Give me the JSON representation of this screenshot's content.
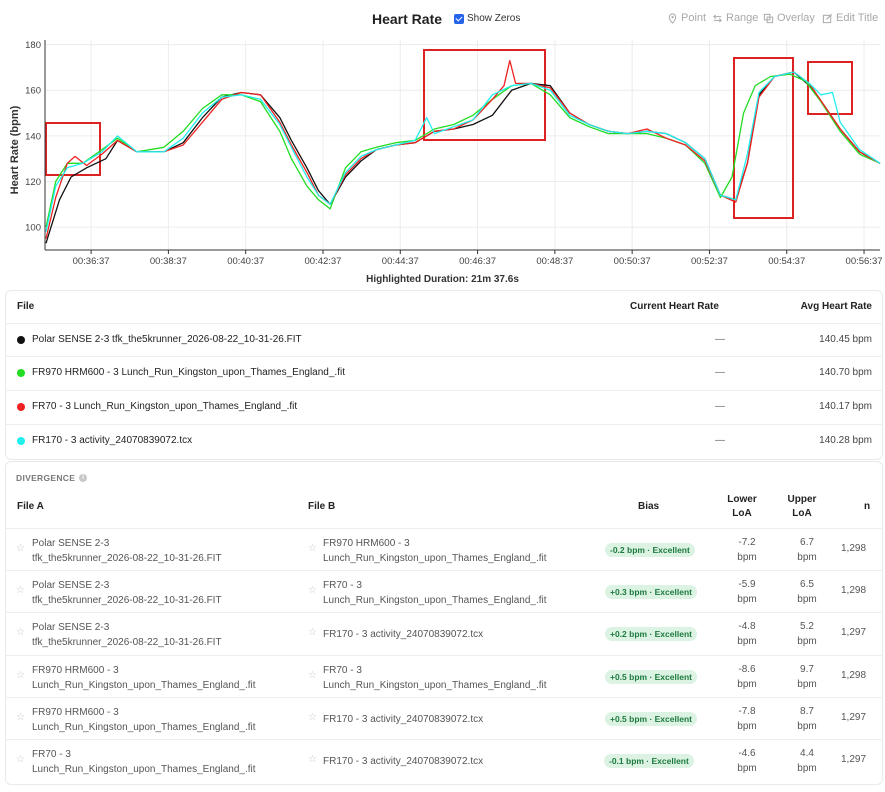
{
  "toolbar": {
    "title": "Heart Rate",
    "show_zeros_label": "Show Zeros",
    "point_label": "Point",
    "range_label": "Range",
    "overlay_label": "Overlay",
    "edit_title_label": "Edit Title"
  },
  "chart_data": {
    "type": "line",
    "title": "",
    "xlabel": "",
    "ylabel": "Heart Rate (bpm)",
    "ylim": [
      90,
      182
    ],
    "y_ticks": [
      "100",
      "120",
      "140",
      "160",
      "180"
    ],
    "x_ticks": [
      "00:36:37",
      "00:38:37",
      "00:40:37",
      "00:42:37",
      "00:44:37",
      "00:46:37",
      "00:48:37",
      "00:50:37",
      "00:52:37",
      "00:54:37",
      "00:56:37"
    ],
    "x_tick_minutes": [
      36.617,
      38.617,
      40.617,
      42.617,
      44.617,
      46.617,
      48.617,
      50.617,
      52.617,
      54.617,
      56.617
    ],
    "x_range_minutes": [
      35.45,
      57.03
    ],
    "grid": true,
    "series": [
      {
        "name": "Polar SENSE 2-3 tfk_the5krunner_2026-08-22_10-31-26.FIT",
        "color": "#111111",
        "x": [
          35.45,
          35.8,
          36.1,
          36.5,
          37.0,
          37.3,
          37.8,
          38.5,
          39.0,
          39.5,
          40.0,
          40.5,
          41.0,
          41.5,
          41.8,
          42.2,
          42.5,
          42.8,
          43.2,
          43.6,
          44.0,
          44.5,
          45.0,
          45.5,
          46.0,
          46.5,
          47.0,
          47.5,
          48.0,
          48.5,
          49.0,
          49.5,
          50.0,
          50.5,
          51.0,
          51.5,
          52.0,
          52.5,
          52.9,
          53.3,
          53.6,
          53.9,
          54.3,
          54.8,
          55.2,
          55.6,
          56.0,
          56.5,
          57.03
        ],
        "y": [
          93,
          112,
          122,
          126,
          130,
          138,
          133,
          133,
          137,
          148,
          157,
          159,
          158,
          148,
          138,
          126,
          116,
          110,
          122,
          129,
          134,
          136,
          137,
          142,
          143,
          145,
          149,
          160,
          163,
          162,
          150,
          145,
          142,
          141,
          142,
          141,
          137,
          130,
          114,
          112,
          128,
          158,
          166,
          168,
          162,
          153,
          143,
          133,
          128
        ]
      },
      {
        "name": "FR970 HRM600 - 3 Lunch_Run_Kingston_upon_Thames_England_.fit",
        "color": "#22dd22",
        "x": [
          35.45,
          35.7,
          36.0,
          36.4,
          36.9,
          37.3,
          37.8,
          38.5,
          39.0,
          39.5,
          40.0,
          40.5,
          41.0,
          41.5,
          41.8,
          42.2,
          42.5,
          42.8,
          43.2,
          43.6,
          44.0,
          44.5,
          45.0,
          45.5,
          46.0,
          46.5,
          47.0,
          47.5,
          48.0,
          48.5,
          49.0,
          49.5,
          50.0,
          50.5,
          51.0,
          51.5,
          52.0,
          52.5,
          52.9,
          53.2,
          53.5,
          53.8,
          54.2,
          54.7,
          55.1,
          55.5,
          56.0,
          56.5,
          57.03
        ],
        "y": [
          100,
          120,
          128,
          128,
          134,
          139,
          133,
          135,
          142,
          152,
          158,
          158,
          155,
          142,
          130,
          118,
          112,
          108,
          126,
          133,
          135,
          137,
          138,
          143,
          145,
          149,
          156,
          162,
          163,
          158,
          148,
          144,
          141,
          141,
          141,
          139,
          136,
          128,
          113,
          122,
          150,
          162,
          166,
          167,
          164,
          155,
          142,
          132,
          128
        ]
      },
      {
        "name": "FR70 - 3 Lunch_Run_Kingston_upon_Thames_England_.fit",
        "color": "#ee2222",
        "x": [
          35.45,
          35.7,
          36.0,
          36.2,
          36.5,
          36.9,
          37.3,
          37.8,
          38.5,
          39.0,
          39.5,
          40.0,
          40.5,
          41.0,
          41.5,
          41.8,
          42.2,
          42.5,
          42.8,
          43.2,
          43.6,
          44.0,
          44.5,
          45.0,
          45.5,
          46.0,
          46.5,
          47.0,
          47.3,
          47.45,
          47.6,
          48.0,
          48.5,
          49.0,
          49.5,
          50.0,
          50.5,
          51.0,
          51.5,
          52.0,
          52.5,
          52.9,
          53.3,
          53.6,
          53.9,
          54.3,
          54.8,
          55.2,
          55.6,
          56.0,
          56.5,
          57.03
        ],
        "y": [
          95,
          113,
          128,
          131,
          127,
          132,
          138,
          133,
          133,
          136,
          146,
          156,
          159,
          158,
          146,
          136,
          124,
          114,
          110,
          123,
          130,
          134,
          136,
          137,
          142,
          143,
          147,
          156,
          162,
          173,
          163,
          163,
          161,
          150,
          145,
          142,
          141,
          143,
          139,
          136,
          129,
          114,
          111,
          128,
          157,
          166,
          168,
          163,
          153,
          143,
          133,
          128
        ]
      },
      {
        "name": "FR170 - 3 activity_24070839072.tcx",
        "color": "#22eeee",
        "x": [
          35.45,
          35.7,
          36.0,
          36.4,
          36.9,
          37.3,
          37.8,
          38.5,
          39.0,
          39.5,
          40.0,
          40.5,
          41.0,
          41.5,
          41.8,
          42.2,
          42.5,
          42.8,
          43.2,
          43.6,
          44.0,
          44.5,
          45.0,
          45.3,
          45.5,
          46.0,
          46.5,
          47.0,
          47.5,
          48.0,
          48.5,
          49.0,
          49.5,
          50.0,
          50.5,
          51.0,
          51.5,
          52.0,
          52.5,
          52.9,
          53.3,
          53.6,
          53.9,
          54.3,
          54.8,
          55.2,
          55.5,
          55.8,
          56.0,
          56.5,
          57.03
        ],
        "y": [
          98,
          118,
          126,
          128,
          133,
          140,
          133,
          133,
          139,
          150,
          157,
          158,
          156,
          145,
          135,
          122,
          114,
          110,
          124,
          131,
          134,
          136,
          138,
          148,
          141,
          144,
          147,
          158,
          162,
          163,
          160,
          149,
          145,
          142,
          141,
          142,
          141,
          137,
          130,
          114,
          112,
          132,
          159,
          166,
          168,
          163,
          158,
          159,
          146,
          134,
          128
        ]
      }
    ],
    "highlight_duration_label": "Highlighted Duration: 21m 37.6s"
  },
  "files_table": {
    "headers": {
      "file": "File",
      "current": "Current Heart Rate",
      "avg": "Avg Heart Rate"
    },
    "rows": [
      {
        "color": "#111111",
        "name": "Polar SENSE 2-3 tfk_the5krunner_2026-08-22_10-31-26.FIT",
        "current": "—",
        "avg": "140.45 bpm"
      },
      {
        "color": "#22dd22",
        "name": "FR970 HRM600 - 3 Lunch_Run_Kingston_upon_Thames_England_.fit",
        "current": "—",
        "avg": "140.70 bpm"
      },
      {
        "color": "#ee2222",
        "name": "FR70 - 3 Lunch_Run_Kingston_upon_Thames_England_.fit",
        "current": "—",
        "avg": "140.17 bpm"
      },
      {
        "color": "#22eeee",
        "name": "FR170 - 3 activity_24070839072.tcx",
        "current": "—",
        "avg": "140.28 bpm"
      }
    ]
  },
  "divergence": {
    "title": "DIVERGENCE",
    "headers": {
      "file_a": "File A",
      "file_b": "File B",
      "bias": "Bias",
      "lower_1": "Lower",
      "lower_2": "LoA",
      "upper_1": "Upper",
      "upper_2": "LoA",
      "n": "n"
    },
    "rows": [
      {
        "a1": "Polar SENSE 2-3",
        "a2": "tfk_the5krunner_2026-08-22_10-31-26.FIT",
        "b1": "FR970 HRM600 - 3",
        "b2": "Lunch_Run_Kingston_upon_Thames_England_.fit",
        "bias": "-0.2 bpm · Excellent",
        "lower": "-7.2",
        "upper": "6.7",
        "unit": "bpm",
        "n": "1,298"
      },
      {
        "a1": "Polar SENSE 2-3",
        "a2": "tfk_the5krunner_2026-08-22_10-31-26.FIT",
        "b1": "FR70 - 3",
        "b2": "Lunch_Run_Kingston_upon_Thames_England_.fit",
        "bias": "+0.3 bpm · Excellent",
        "lower": "-5.9",
        "upper": "6.5",
        "unit": "bpm",
        "n": "1,298"
      },
      {
        "a1": "Polar SENSE 2-3",
        "a2": "tfk_the5krunner_2026-08-22_10-31-26.FIT",
        "b1": "FR170 - 3 activity_24070839072.tcx",
        "b2": "",
        "bias": "+0.2 bpm · Excellent",
        "lower": "-4.8",
        "upper": "5.2",
        "unit": "bpm",
        "n": "1,297"
      },
      {
        "a1": "FR970 HRM600 - 3",
        "a2": "Lunch_Run_Kingston_upon_Thames_England_.fit",
        "b1": "FR70 - 3",
        "b2": "Lunch_Run_Kingston_upon_Thames_England_.fit",
        "bias": "+0.5 bpm · Excellent",
        "lower": "-8.6",
        "upper": "9.7",
        "unit": "bpm",
        "n": "1,298"
      },
      {
        "a1": "FR970 HRM600 - 3",
        "a2": "Lunch_Run_Kingston_upon_Thames_England_.fit",
        "b1": "FR170 - 3 activity_24070839072.tcx",
        "b2": "",
        "bias": "+0.5 bpm · Excellent",
        "lower": "-7.8",
        "upper": "8.7",
        "unit": "bpm",
        "n": "1,297"
      },
      {
        "a1": "FR70 - 3",
        "a2": "Lunch_Run_Kingston_upon_Thames_England_.fit",
        "b1": "FR170 - 3 activity_24070839072.tcx",
        "b2": "",
        "bias": "-0.1 bpm · Excellent",
        "lower": "-4.6",
        "upper": "4.4",
        "unit": "bpm",
        "n": "1,297"
      }
    ]
  }
}
